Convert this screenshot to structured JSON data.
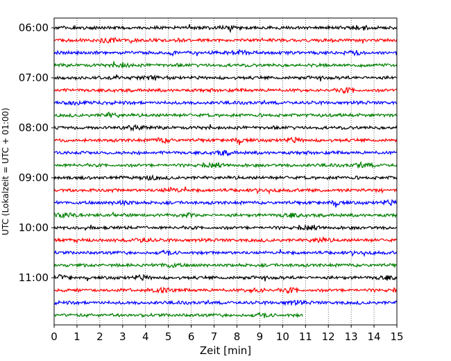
{
  "chart_data": {
    "type": "line",
    "title": "",
    "xlabel": "Zeit  [min]",
    "ylabel": "UTC (Lokalzeit = UTC + 01:00)",
    "xlim": [
      0,
      15
    ],
    "x_ticks": [
      "0",
      "1",
      "2",
      "3",
      "4",
      "5",
      "6",
      "7",
      "8",
      "9",
      "10",
      "11",
      "12",
      "13",
      "14",
      "15"
    ],
    "y_ticks": [
      "06:00",
      "07:00",
      "08:00",
      "09:00",
      "10:00",
      "11:00"
    ],
    "grid": "vertical dotted",
    "trace_interval_minutes": 15,
    "trace_colors": [
      "#000000",
      "#ff0000",
      "#0000ff",
      "#007f00"
    ],
    "series": [
      {
        "start": "06:00",
        "end_minute": 15
      },
      {
        "start": "06:15",
        "end_minute": 15
      },
      {
        "start": "06:30",
        "end_minute": 15
      },
      {
        "start": "06:45",
        "end_minute": 15
      },
      {
        "start": "07:00",
        "end_minute": 15
      },
      {
        "start": "07:15",
        "end_minute": 15
      },
      {
        "start": "07:30",
        "end_minute": 15
      },
      {
        "start": "07:45",
        "end_minute": 15
      },
      {
        "start": "08:00",
        "end_minute": 15
      },
      {
        "start": "08:15",
        "end_minute": 15
      },
      {
        "start": "08:30",
        "end_minute": 15
      },
      {
        "start": "08:45",
        "end_minute": 15
      },
      {
        "start": "09:00",
        "end_minute": 15
      },
      {
        "start": "09:15",
        "end_minute": 15
      },
      {
        "start": "09:30",
        "end_minute": 15
      },
      {
        "start": "09:45",
        "end_minute": 15
      },
      {
        "start": "10:00",
        "end_minute": 15
      },
      {
        "start": "10:15",
        "end_minute": 15
      },
      {
        "start": "10:30",
        "end_minute": 15
      },
      {
        "start": "10:45",
        "end_minute": 15
      },
      {
        "start": "11:00",
        "end_minute": 15
      },
      {
        "start": "11:15",
        "end_minute": 15
      },
      {
        "start": "11:30",
        "end_minute": 15
      },
      {
        "start": "11:45",
        "end_minute": 10.9
      }
    ]
  }
}
